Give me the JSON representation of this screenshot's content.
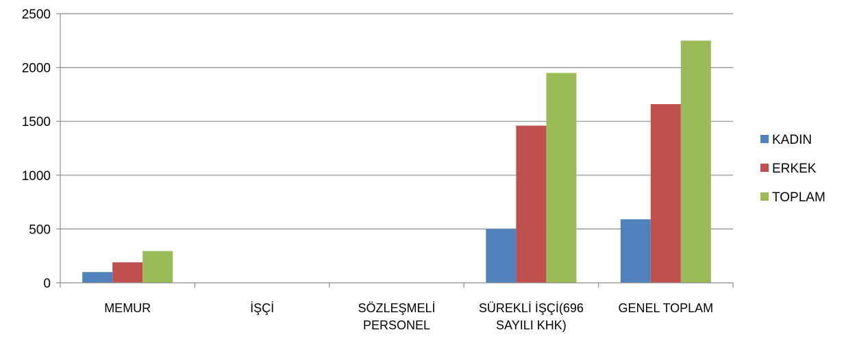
{
  "chart_data": {
    "type": "bar",
    "categories": [
      [
        "MEMUR"
      ],
      [
        "İŞÇİ"
      ],
      [
        "SÖZLEŞMELİ",
        "PERSONEL"
      ],
      [
        "SÜREKLİ İŞÇİ(696",
        "SAYILI KHK)"
      ],
      [
        "GENEL TOPLAM"
      ]
    ],
    "series": [
      {
        "name": "KADIN",
        "color": "#4F81BD",
        "values": [
          100,
          0,
          0,
          500,
          590
        ]
      },
      {
        "name": "ERKEK",
        "color": "#C0504D",
        "values": [
          190,
          0,
          0,
          1460,
          1660
        ]
      },
      {
        "name": "TOPLAM",
        "color": "#9BBB59",
        "values": [
          295,
          0,
          0,
          1950,
          2250
        ]
      }
    ],
    "ylim": [
      0,
      2500
    ],
    "yticks": [
      0,
      500,
      1000,
      1500,
      2000,
      2500
    ],
    "grid": true,
    "legend_position": "right",
    "title": "",
    "xlabel": "",
    "ylabel": ""
  }
}
